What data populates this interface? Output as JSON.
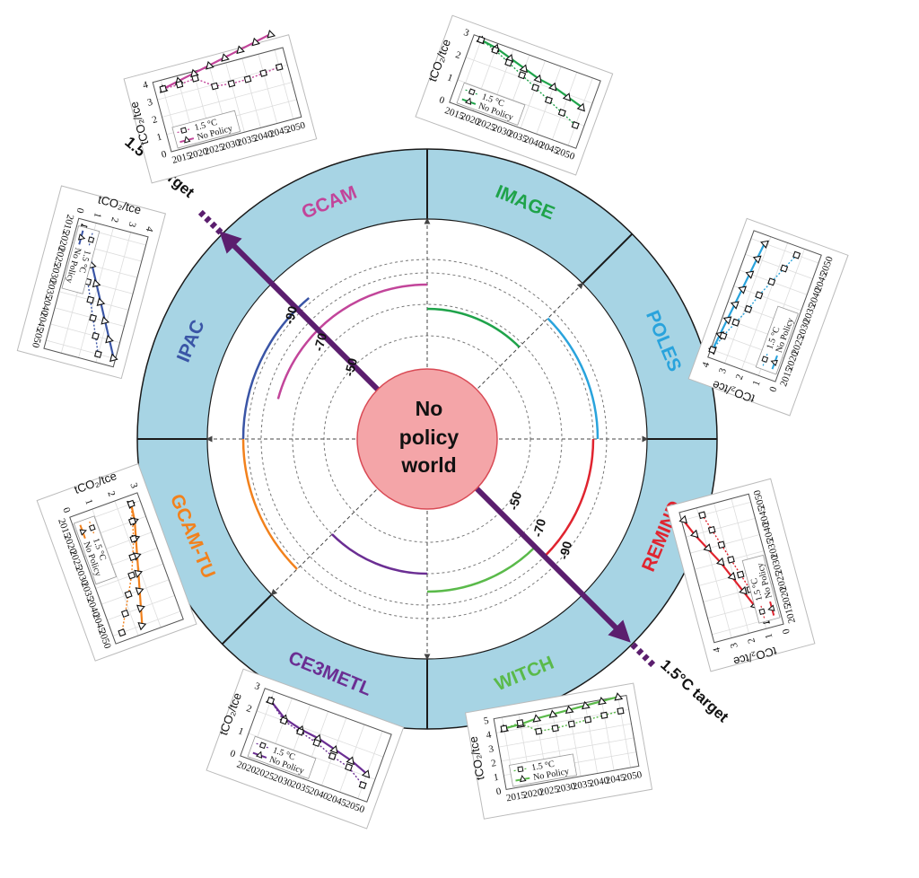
{
  "center": {
    "line1": "No",
    "line2": "policy",
    "line3": "world"
  },
  "target_label": "1.5°C target",
  "ring_labels": [
    "-50",
    "-70",
    "-90"
  ],
  "legend": {
    "policy": "1.5 °C",
    "nopolicy": "No Policy"
  },
  "axis_title": "tCO₂/tce",
  "models": [
    {
      "name": "GCAM",
      "color": "#c2459a",
      "years": [
        "2015",
        "2020",
        "2025",
        "2030",
        "2035",
        "2040",
        "2045",
        "2050"
      ],
      "yticks": [
        "0",
        "1",
        "2",
        "3",
        "4"
      ],
      "ymax": 4,
      "nopolicy": [
        3.5,
        3.7,
        3.9,
        4.1,
        4.3,
        4.5,
        4.7,
        4.9
      ],
      "policy": [
        3.5,
        3.5,
        3.6,
        2.9,
        2.8,
        2.8,
        2.9,
        3.0
      ]
    },
    {
      "name": "IMAGE",
      "color": "#1fa34a",
      "years": [
        "2015",
        "2020",
        "2025",
        "2030",
        "2035",
        "2040",
        "2045",
        "2050"
      ],
      "yticks": [
        "0",
        "1",
        "2",
        "3"
      ],
      "ymax": 3,
      "nopolicy": [
        2.9,
        2.8,
        2.6,
        2.4,
        2.2,
        2.1,
        1.9,
        1.7
      ],
      "policy": [
        2.9,
        2.7,
        2.4,
        2.1,
        1.8,
        1.5,
        1.2,
        0.9
      ]
    },
    {
      "name": "POLES",
      "color": "#29a3dc",
      "years": [
        "2015",
        "2020",
        "2025",
        "2030",
        "2035",
        "2040",
        "2045",
        "2050"
      ],
      "yticks": [
        "0",
        "1",
        "2",
        "3",
        "4"
      ],
      "ymax": 4,
      "nopolicy": [
        3.9,
        3.8,
        3.7,
        3.6,
        3.5,
        3.4,
        3.3,
        3.2
      ],
      "policy": [
        3.9,
        3.6,
        3.2,
        2.8,
        2.5,
        2.1,
        1.7,
        1.3
      ]
    },
    {
      "name": "REMIND",
      "color": "#e0242f",
      "years": [
        "2015",
        "2020",
        "2025",
        "2030",
        "2035",
        "2040",
        "2045",
        "2050"
      ],
      "yticks": [
        "0",
        "1",
        "2",
        "3",
        "4"
      ],
      "ymax": 4,
      "nopolicy": [
        0.9,
        1.3,
        1.7,
        2.1,
        2.5,
        3.0,
        3.5,
        3.9
      ],
      "policy": [
        0.9,
        1.0,
        1.3,
        1.6,
        1.9,
        2.2,
        2.5,
        2.8
      ]
    },
    {
      "name": "WITCH",
      "color": "#5aba4a",
      "years": [
        "2015",
        "2020",
        "2025",
        "2030",
        "2035",
        "2040",
        "2045",
        "2050"
      ],
      "yticks": [
        "0",
        "1",
        "2",
        "3",
        "4",
        "5"
      ],
      "ymax": 5,
      "nopolicy": [
        4.2,
        4.3,
        4.5,
        4.6,
        4.7,
        4.8,
        4.9,
        5.0
      ],
      "policy": [
        4.2,
        4.4,
        3.6,
        3.6,
        3.7,
        3.8,
        3.9,
        4.0
      ]
    },
    {
      "name": "CE3METL",
      "color": "#6b2e93",
      "years": [
        "2020",
        "2025",
        "2030",
        "2035",
        "2040",
        "2045",
        "2050"
      ],
      "yticks": [
        "0",
        "1",
        "2",
        "3"
      ],
      "ymax": 3,
      "nopolicy": [
        2.6,
        2.1,
        1.9,
        1.8,
        1.6,
        1.4,
        1.1
      ],
      "policy": [
        2.6,
        2.0,
        1.8,
        1.6,
        1.3,
        1.1,
        0.6
      ]
    },
    {
      "name": "GCAM-TU",
      "color": "#f2811c",
      "years": [
        "2015",
        "2020",
        "2025",
        "2030",
        "2035",
        "2040",
        "2045",
        "2050"
      ],
      "yticks": [
        "0",
        "1",
        "2",
        "3"
      ],
      "ymax": 3,
      "nopolicy": [
        2.6,
        2.5,
        2.3,
        2.1,
        1.9,
        1.7,
        1.5,
        1.3
      ],
      "policy": [
        2.6,
        2.4,
        2.2,
        1.9,
        1.6,
        1.2,
        0.8,
        0.4
      ]
    },
    {
      "name": "IPAC",
      "color": "#3a55a6",
      "years": [
        "2015",
        "2020",
        "2025",
        "2030",
        "2035",
        "2040",
        "2045",
        "2050"
      ],
      "yticks": [
        "0",
        "1",
        "2",
        "3",
        "4"
      ],
      "ymax": 4,
      "nopolicy": [
        0.4,
        0.9,
        1.4,
        1.9,
        2.4,
        2.9,
        3.4,
        3.9
      ],
      "policy": [
        0.4,
        0.7,
        1.0,
        1.4,
        1.8,
        2.2,
        2.6,
        3.0
      ]
    }
  ]
}
